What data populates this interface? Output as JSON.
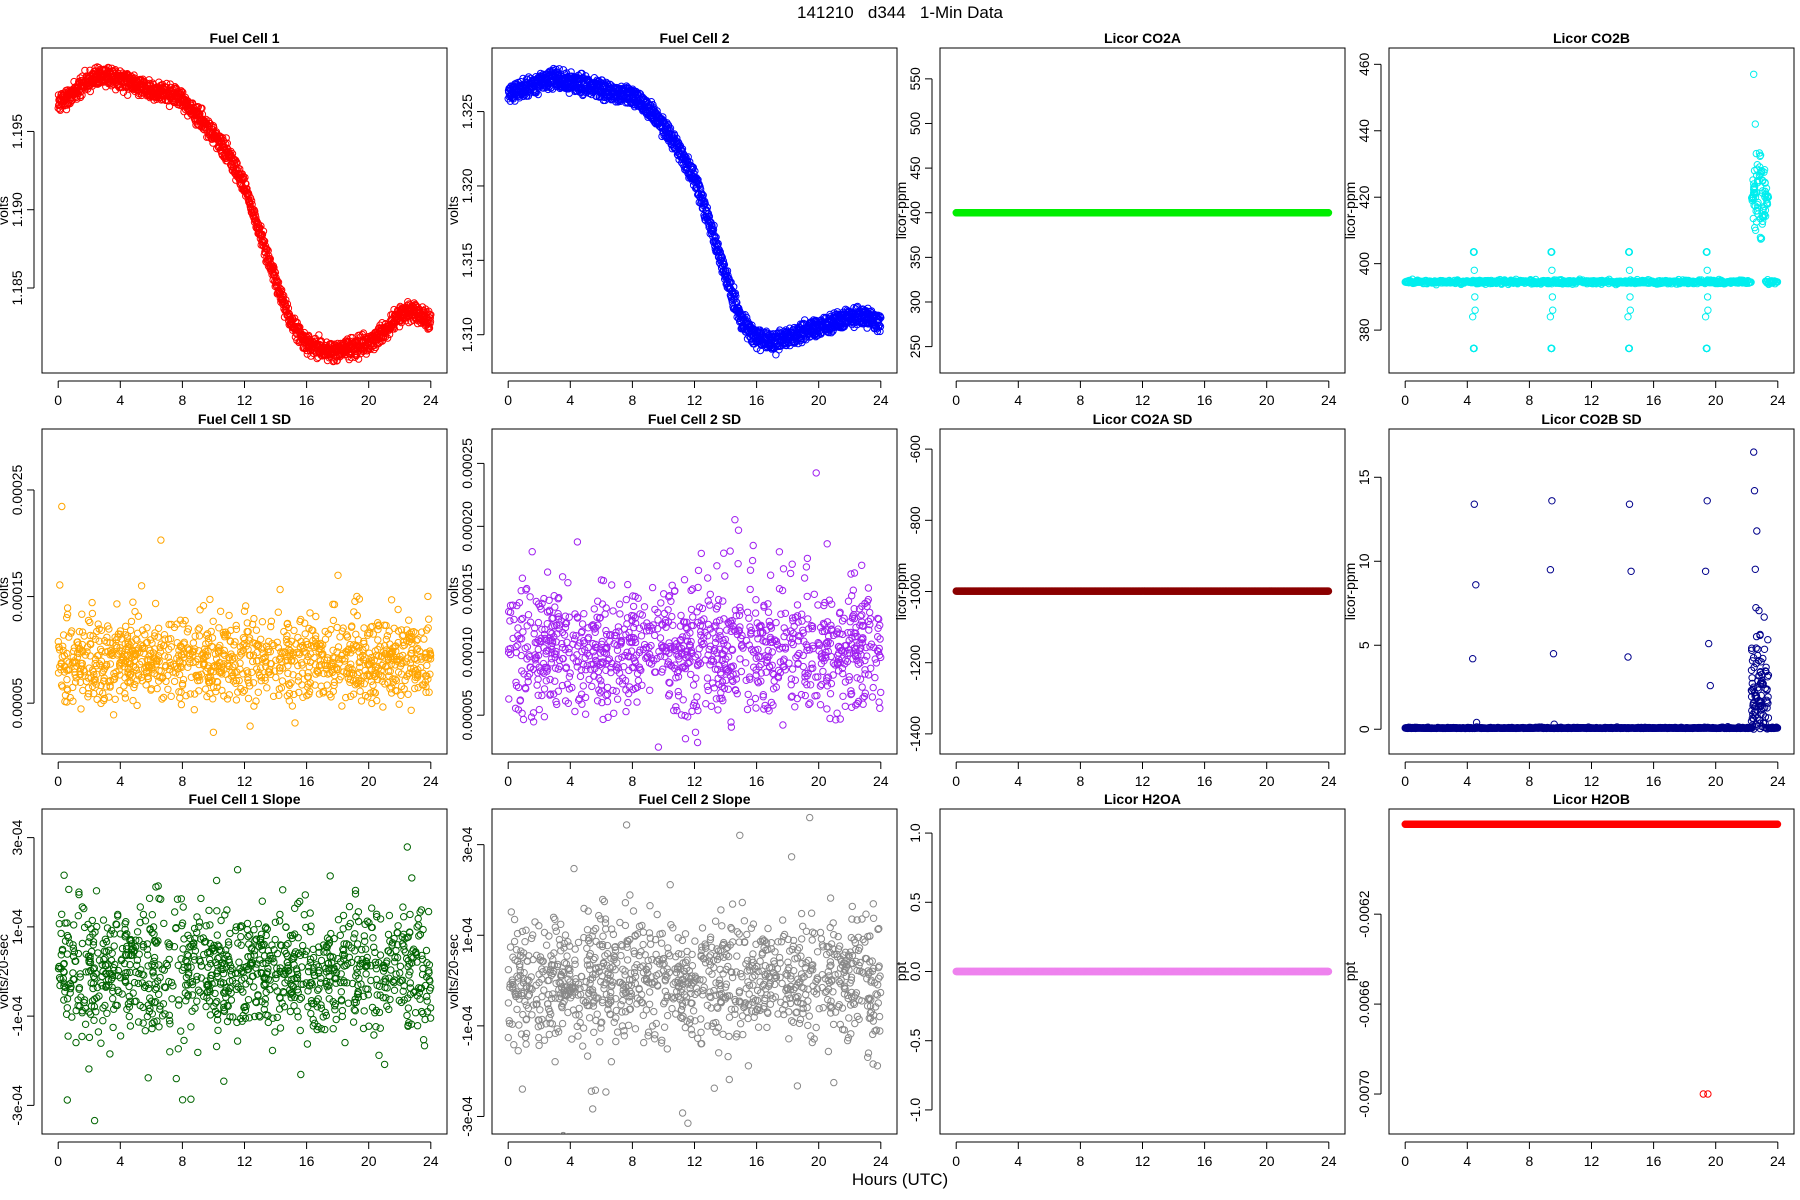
{
  "title": "141210   d344   1-Min Data",
  "x_axis_label": "Hours (UTC)",
  "chart_data": [
    {
      "type": "scatter",
      "title": "Fuel Cell 1",
      "ylabel": "volts",
      "color": "#ff0000",
      "xlim": [
        0,
        24
      ],
      "ylim": [
        1.1804,
        1.1995
      ],
      "xticks": [
        0,
        4,
        8,
        12,
        16,
        20,
        24
      ],
      "yticks": [
        1.185,
        1.19,
        1.195
      ],
      "ytick_labels": [
        "1.185",
        "1.190",
        "1.195"
      ],
      "trend": [
        [
          0,
          1.1968
        ],
        [
          1,
          1.1975
        ],
        [
          2,
          1.1983
        ],
        [
          3,
          1.1986
        ],
        [
          4,
          1.1983
        ],
        [
          5,
          1.198
        ],
        [
          6,
          1.1976
        ],
        [
          7,
          1.1975
        ],
        [
          8,
          1.197
        ],
        [
          9,
          1.196
        ],
        [
          10,
          1.1948
        ],
        [
          11,
          1.1935
        ],
        [
          12,
          1.1915
        ],
        [
          13,
          1.1885
        ],
        [
          14,
          1.1855
        ],
        [
          15,
          1.1828
        ],
        [
          16,
          1.1815
        ],
        [
          17,
          1.181
        ],
        [
          18,
          1.181
        ],
        [
          19,
          1.1812
        ],
        [
          20,
          1.1815
        ],
        [
          21,
          1.1822
        ],
        [
          22,
          1.1833
        ],
        [
          23,
          1.1835
        ],
        [
          24,
          1.1828
        ]
      ],
      "noise": 0.0006,
      "band": 0.0005,
      "n": 1440,
      "seed": 11
    },
    {
      "type": "scatter",
      "title": "Fuel Cell 2",
      "ylabel": "volts",
      "color": "#0000ff",
      "xlim": [
        0,
        24
      ],
      "ylim": [
        1.3083,
        1.3284
      ],
      "xticks": [
        0,
        4,
        8,
        12,
        16,
        20,
        24
      ],
      "yticks": [
        1.31,
        1.315,
        1.32,
        1.325
      ],
      "ytick_labels": [
        "1.310",
        "1.315",
        "1.320",
        "1.325"
      ],
      "trend": [
        [
          0,
          1.3262
        ],
        [
          1,
          1.3265
        ],
        [
          2,
          1.327
        ],
        [
          3,
          1.3272
        ],
        [
          4,
          1.327
        ],
        [
          5,
          1.3268
        ],
        [
          6,
          1.3265
        ],
        [
          7,
          1.3262
        ],
        [
          8,
          1.326
        ],
        [
          9,
          1.3252
        ],
        [
          10,
          1.324
        ],
        [
          11,
          1.3225
        ],
        [
          12,
          1.3205
        ],
        [
          13,
          1.3175
        ],
        [
          14,
          1.314
        ],
        [
          15,
          1.311
        ],
        [
          16,
          1.3098
        ],
        [
          17,
          1.3095
        ],
        [
          18,
          1.3098
        ],
        [
          19,
          1.3102
        ],
        [
          20,
          1.3105
        ],
        [
          21,
          1.3108
        ],
        [
          22,
          1.3112
        ],
        [
          23,
          1.3112
        ],
        [
          24,
          1.3108
        ]
      ],
      "noise": 0.0005,
      "band": 0.0006,
      "n": 1440,
      "seed": 22
    },
    {
      "type": "scatter",
      "title": "Licor CO2A",
      "ylabel": "licor-ppm",
      "color": "#00ee00",
      "xlim": [
        0,
        24
      ],
      "ylim": [
        235,
        570
      ],
      "xticks": [
        0,
        4,
        8,
        12,
        16,
        20,
        24
      ],
      "yticks": [
        250,
        300,
        350,
        400,
        450,
        500,
        550
      ],
      "ytick_labels": [
        "250",
        "300",
        "350",
        "400",
        "450",
        "500",
        "550"
      ],
      "constant": 400
    },
    {
      "type": "scatter",
      "title": "Licor CO2B",
      "ylabel": "licor-ppm",
      "color": "#00eeee",
      "xlim": [
        0,
        24
      ],
      "ylim": [
        371,
        461
      ],
      "xticks": [
        0,
        4,
        8,
        12,
        16,
        20,
        24
      ],
      "yticks": [
        380,
        400,
        420,
        440,
        460
      ],
      "ytick_labels": [
        "380",
        "400",
        "420",
        "440",
        "460"
      ],
      "baseline": 394.5,
      "baseline_end": 22.3,
      "baseline_resume": 23.2,
      "spike_times": [
        4.4,
        9.4,
        14.4,
        19.4
      ],
      "spike_high": 403.5,
      "spike_low": 374.5,
      "burst": {
        "start": 22.3,
        "end": 23.4,
        "peak": 457,
        "center": 420
      }
    },
    {
      "type": "scatter",
      "title": "Fuel Cell 1 SD",
      "ylabel": "volts",
      "color": "#ffa500",
      "xlim": [
        0,
        24
      ],
      "ylim": [
        1.45e-05,
        0.000295
      ],
      "xticks": [
        0,
        4,
        8,
        12,
        16,
        20,
        24
      ],
      "yticks": [
        5e-05,
        0.00015,
        0.00025
      ],
      "ytick_labels": [
        "0.00005",
        "0.00015",
        "0.00025"
      ],
      "center": 9e-05,
      "spread": 2e-05,
      "n": 1100,
      "seed": 33
    },
    {
      "type": "scatter",
      "title": "Fuel Cell 2 SD",
      "ylabel": "volts",
      "color": "#a020f0",
      "xlim": [
        0,
        24
      ],
      "ylim": [
        2.95e-05,
        0.000267
      ],
      "xticks": [
        0,
        4,
        8,
        12,
        16,
        20,
        24
      ],
      "yticks": [
        5e-05,
        0.0001,
        0.00015,
        0.0002,
        0.00025
      ],
      "ytick_labels": [
        "0.00005",
        "0.00010",
        "0.00015",
        "0.00020",
        "0.00025"
      ],
      "center": 0.0001,
      "spread": 2.5e-05,
      "n": 1100,
      "seed": 44
    },
    {
      "type": "scatter",
      "title": "Licor CO2A SD",
      "ylabel": "licor-ppm",
      "color": "#8b0000",
      "xlim": [
        0,
        24
      ],
      "ylim": [
        -1420,
        -580
      ],
      "xticks": [
        0,
        4,
        8,
        12,
        16,
        20,
        24
      ],
      "yticks": [
        -1400,
        -1200,
        -1000,
        -800,
        -600
      ],
      "ytick_labels": [
        "-1400",
        "-1200",
        "-1000",
        "-800",
        "-600"
      ],
      "constant": -999
    },
    {
      "type": "scatter",
      "title": "Licor CO2B SD",
      "ylabel": "licor-ppm",
      "color": "#00008b",
      "xlim": [
        0,
        24
      ],
      "ylim": [
        -0.7,
        17.1
      ],
      "xticks": [
        0,
        4,
        8,
        12,
        16,
        20,
        24
      ],
      "yticks": [
        0,
        5,
        10,
        15
      ],
      "ytick_labels": [
        "0",
        "5",
        "10",
        "15"
      ],
      "baseline": 0.05,
      "spikes": [
        [
          4.35,
          4.2
        ],
        [
          4.45,
          13.4
        ],
        [
          4.55,
          8.6
        ],
        [
          4.6,
          0.4
        ],
        [
          9.35,
          9.5
        ],
        [
          9.45,
          13.6
        ],
        [
          9.55,
          4.5
        ],
        [
          9.6,
          0.3
        ],
        [
          14.35,
          4.3
        ],
        [
          14.45,
          13.4
        ],
        [
          14.55,
          9.4
        ],
        [
          19.35,
          9.4
        ],
        [
          19.45,
          13.6
        ],
        [
          19.55,
          5.1
        ],
        [
          19.65,
          2.6
        ]
      ],
      "burst": {
        "start": 22.3,
        "end": 23.4,
        "peak": 16.5
      }
    },
    {
      "type": "scatter",
      "title": "Fuel Cell 1 Slope",
      "ylabel": "volts/20-sec",
      "color": "#006400",
      "xlim": [
        0,
        24
      ],
      "ylim": [
        -0.000335,
        0.000335
      ],
      "xticks": [
        0,
        4,
        8,
        12,
        16,
        20,
        24
      ],
      "yticks": [
        -0.0003,
        -0.0001,
        0.0001,
        0.0003
      ],
      "ytick_labels": [
        "-3e-04",
        "-1e-04",
        "1e-04",
        "3e-04"
      ],
      "center": 0,
      "spread": 7e-05,
      "n": 1100,
      "seed": 55
    },
    {
      "type": "scatter",
      "title": "Fuel Cell 2 Slope",
      "ylabel": "volts/20-sec",
      "color": "#888888",
      "xlim": [
        0,
        24
      ],
      "ylim": [
        -0.00031,
        0.00035
      ],
      "xticks": [
        0,
        4,
        8,
        12,
        16,
        20,
        24
      ],
      "yticks": [
        -0.0003,
        -0.0001,
        0.0001,
        0.0003
      ],
      "ytick_labels": [
        "-3e-04",
        "-1e-04",
        "1e-04",
        "3e-04"
      ],
      "center": 0,
      "spread": 7e-05,
      "n": 1100,
      "seed": 66
    },
    {
      "type": "scatter",
      "title": "Licor H2OA",
      "ylabel": "ppt",
      "color": "#ee82ee",
      "xlim": [
        0,
        24
      ],
      "ylim": [
        -1.08,
        1.08
      ],
      "xticks": [
        0,
        4,
        8,
        12,
        16,
        20,
        24
      ],
      "yticks": [
        -1,
        -0.5,
        0,
        0.5,
        1
      ],
      "ytick_labels": [
        "-1.0",
        "-0.5",
        "0.0",
        "0.5",
        "1.0"
      ],
      "constant": 0
    },
    {
      "type": "scatter",
      "title": "Licor H2OB",
      "ylabel": "ppt",
      "color": "#ff0000",
      "xlim": [
        0,
        24
      ],
      "ylim": [
        -0.00712,
        -0.00579
      ],
      "xticks": [
        0,
        4,
        8,
        12,
        16,
        20,
        24
      ],
      "yticks": [
        -0.007,
        -0.0066,
        -0.0062
      ],
      "ytick_labels": [
        "-0.0070",
        "-0.0066",
        "-0.0062"
      ],
      "constant": -0.0058,
      "outliers": [
        [
          19.2,
          -0.007
        ],
        [
          19.5,
          -0.007
        ]
      ]
    }
  ]
}
